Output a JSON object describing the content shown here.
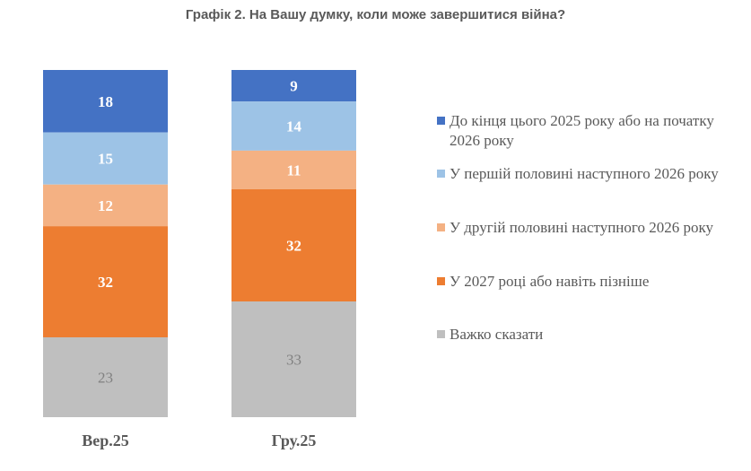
{
  "chart_data": {
    "type": "bar",
    "stacked": true,
    "title": "Графік 2. На Вашу думку, коли може завершитися війна?",
    "categories": [
      "Вер.25",
      "Гру.25"
    ],
    "series": [
      {
        "name": "До кінця цього 2025 року або на початку 2026 року",
        "color": "#4472C4",
        "label_color": "#FFFFFF",
        "values": [
          18,
          9
        ]
      },
      {
        "name": "У першій половині наступного 2026 року",
        "color": "#9DC3E6",
        "label_color": "#FFFFFF",
        "values": [
          15,
          14
        ]
      },
      {
        "name": "У другій половині наступного 2026 року",
        "color": "#F4B183",
        "label_color": "#FFFFFF",
        "values": [
          12,
          11
        ]
      },
      {
        "name": "У 2027 році або навіть пізніше",
        "color": "#ED7D31",
        "label_color": "#FFFFFF",
        "values": [
          32,
          32
        ]
      },
      {
        "name": "Важко сказати",
        "color": "#BFBFBF",
        "label_color": "#808080",
        "values": [
          23,
          33
        ]
      }
    ],
    "legend_position": "right",
    "grid": false,
    "axes_visible": false
  }
}
